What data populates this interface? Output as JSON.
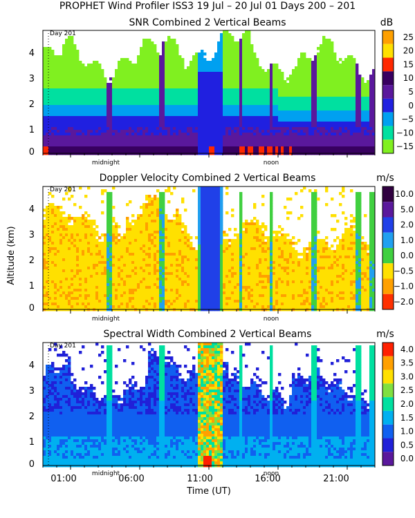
{
  "figure": {
    "title": "PROPHET Wind Profiler ISS3  19 Jul – 20 Jul 01 Days 200 – 201",
    "xlabel": "Time (UT)",
    "ylabel": "Altitude (km)"
  },
  "chart_data": [
    {
      "type": "heatmap",
      "title": "SNR Combined 2 Vertical Beams",
      "unit": "dB",
      "day_label": "Day 201",
      "xlim": [
        -1,
        23
      ],
      "ylim": [
        0,
        4.8
      ],
      "yticks": [
        "0",
        "1",
        "2",
        "3",
        "4"
      ],
      "minor_labels": [
        "midnight",
        "noon"
      ],
      "colorbar": {
        "labels": [
          "25",
          "20",
          "15",
          "10",
          "5",
          "0",
          "−5",
          "−10",
          "−15"
        ],
        "colors": [
          "#ffa000",
          "#ffe000",
          "#ff2800",
          "#380060",
          "#5a189c",
          "#2020e0",
          "#00a0f0",
          "#00e0a0",
          "#80f020"
        ]
      }
    },
    {
      "type": "heatmap",
      "title": "Doppler Velocity Combined 2 Vertical Beams",
      "unit": "m/s",
      "day_label": "Day 201",
      "xlim": [
        -1,
        23
      ],
      "ylim": [
        0,
        4.8
      ],
      "yticks": [
        "0",
        "1",
        "2",
        "3",
        "4"
      ],
      "minor_labels": [
        "midnight",
        "noon"
      ],
      "colorbar": {
        "labels": [
          "10.0",
          "5.0",
          "2.0",
          "1.0",
          "0.0",
          "−0.5",
          "−1.0",
          "−2.0"
        ],
        "colors": [
          "#300040",
          "#5a189c",
          "#2040e8",
          "#20a0f0",
          "#40d040",
          "#ffe000",
          "#ffa000",
          "#ff3000"
        ]
      }
    },
    {
      "type": "heatmap",
      "title": "Spectral Width Combined 2 Vertical Beams",
      "unit": "m/s",
      "day_label": "Day 201",
      "xlim": [
        -1,
        23
      ],
      "ylim": [
        0,
        4.8
      ],
      "yticks": [
        "0",
        "1",
        "2",
        "3",
        "4"
      ],
      "minor_labels": [
        "midnight",
        "noon"
      ],
      "xticks": [
        "01:00",
        "06:00",
        "11:00",
        "16:00",
        "21:00"
      ],
      "colorbar": {
        "labels": [
          "4.0",
          "3.5",
          "3.0",
          "2.5",
          "2.0",
          "1.5",
          "1.0",
          "0.5",
          "0.0"
        ],
        "colors": [
          "#ff2000",
          "#ffa000",
          "#ffe000",
          "#80e040",
          "#00e0a0",
          "#00b0f0",
          "#1060f0",
          "#2020d8",
          "#5a189c"
        ]
      }
    }
  ]
}
